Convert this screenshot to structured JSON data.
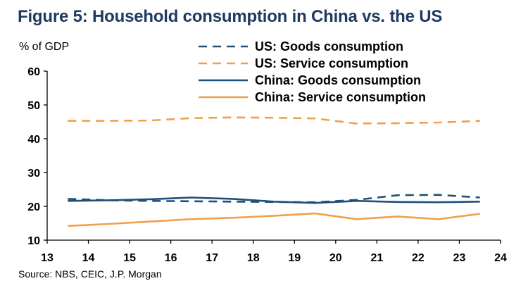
{
  "header": {
    "title": "Figure 5: Household consumption in China vs. the US",
    "unit_label": "% of GDP",
    "source": "Source: NBS, CEIC, J.P. Morgan"
  },
  "chart_data": {
    "type": "line",
    "title": "Figure 5: Household consumption in China vs. the US",
    "xlabel": "",
    "ylabel": "% of GDP",
    "xlim": [
      13,
      24
    ],
    "ylim": [
      10,
      60
    ],
    "x_ticks": [
      13,
      14,
      15,
      16,
      17,
      18,
      19,
      20,
      21,
      22,
      23,
      24
    ],
    "y_ticks": [
      10,
      20,
      30,
      40,
      50,
      60
    ],
    "grid": false,
    "legend_position": "top-center",
    "x": [
      13.5,
      14.5,
      15.5,
      16.5,
      17.5,
      18.5,
      19.5,
      20.5,
      21.5,
      22.5,
      23.5
    ],
    "series": [
      {
        "name": "US: Goods consumption",
        "color": "#1f4e79",
        "dash": true,
        "values": [
          22.2,
          21.8,
          21.6,
          21.5,
          21.4,
          21.3,
          21.2,
          21.9,
          23.3,
          23.4,
          22.6
        ]
      },
      {
        "name": "US: Service consumption",
        "color": "#f0a04b",
        "dash": true,
        "values": [
          45.3,
          45.3,
          45.4,
          46.1,
          46.3,
          46.2,
          46.0,
          44.5,
          44.6,
          44.8,
          45.3
        ]
      },
      {
        "name": "China: Goods consumption",
        "color": "#1f4e79",
        "dash": false,
        "values": [
          21.6,
          21.8,
          22.1,
          22.6,
          22.2,
          21.4,
          21.0,
          21.6,
          21.3,
          21.2,
          21.4
        ]
      },
      {
        "name": "China: Service consumption",
        "color": "#f0a04b",
        "dash": false,
        "values": [
          14.2,
          14.8,
          15.5,
          16.2,
          16.6,
          17.2,
          17.9,
          16.2,
          17.0,
          16.2,
          17.8
        ]
      }
    ]
  }
}
